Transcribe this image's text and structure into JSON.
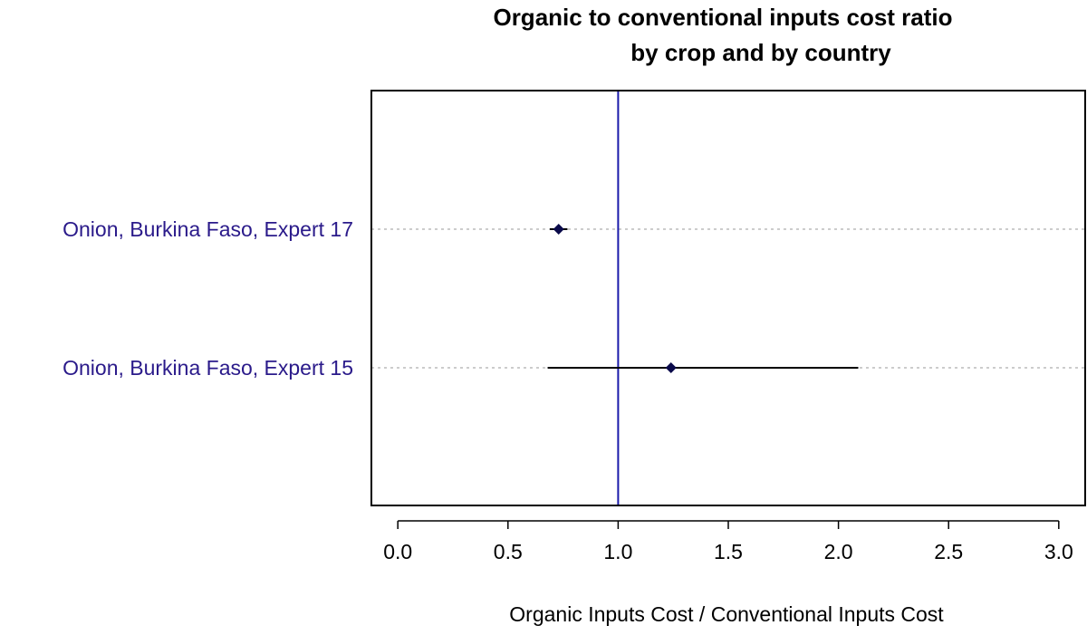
{
  "chart_data": {
    "type": "scatter",
    "title_line1": "Organic to conventional inputs cost ratio",
    "title_line2": "by crop and by country",
    "xlabel": "Organic Inputs Cost / Conventional Inputs Cost",
    "xlim": [
      -0.12,
      3.12
    ],
    "x_ticks": [
      "0.0",
      "0.5",
      "1.0",
      "1.5",
      "2.0",
      "2.5",
      "3.0"
    ],
    "reference_x": 1.0,
    "grid": "dotted horizontal",
    "rows": [
      {
        "label": "Onion, Burkina Faso, Expert 17",
        "estimate": 0.73,
        "lower": 0.69,
        "upper": 0.77
      },
      {
        "label": "Onion, Burkina Faso, Expert 15",
        "estimate": 1.24,
        "lower": 0.68,
        "upper": 2.09
      }
    ],
    "colors": {
      "label_text": "#2a1a8a",
      "reference_line": "#1a1aaa",
      "point": "#0a0a4a",
      "interval": "#000000",
      "grid": "#bbbbbb"
    }
  }
}
